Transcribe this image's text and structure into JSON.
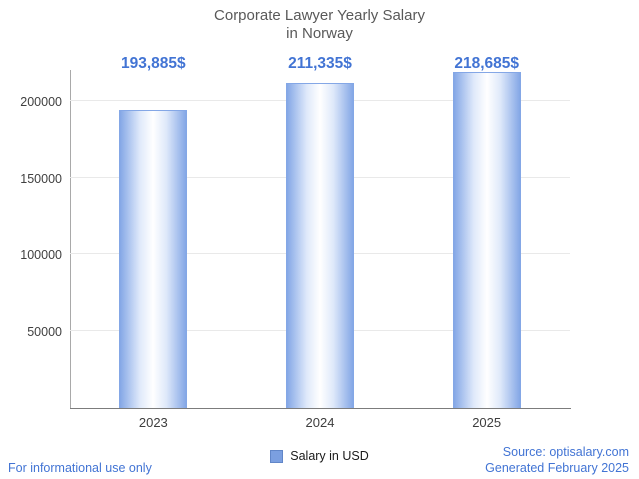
{
  "title": {
    "line1": "Corporate Lawyer Yearly Salary",
    "line2": "in Norway"
  },
  "chart_data": {
    "type": "bar",
    "title": "Corporate Lawyer Yearly Salary in Norway",
    "categories": [
      "2023",
      "2024",
      "2025"
    ],
    "series": [
      {
        "name": "Salary in USD",
        "values": [
          193885,
          211335,
          218685
        ]
      }
    ],
    "value_labels": [
      "193,885$",
      "211,335$",
      "218,685$"
    ],
    "xlabel": "",
    "ylabel": "",
    "ylim": [
      0,
      220000
    ],
    "yticks": [
      50000,
      100000,
      150000,
      200000
    ],
    "ytick_labels": [
      "50000",
      "100000",
      "150000",
      "200000"
    ],
    "grid": true,
    "legend_position": "bottom",
    "colors": {
      "bar_edge": "#84a7e6",
      "bar_center": "#ffffff",
      "value_label": "#4274d4",
      "gridline": "#e9e9e9"
    }
  },
  "legend": {
    "label": "Salary in USD",
    "swatch_color": "#7b9fe0"
  },
  "footer": {
    "disclaimer": "For informational use only",
    "source": "Source: optisalary.com",
    "generated": "Generated February 2025",
    "text_color": "#4274d4"
  }
}
